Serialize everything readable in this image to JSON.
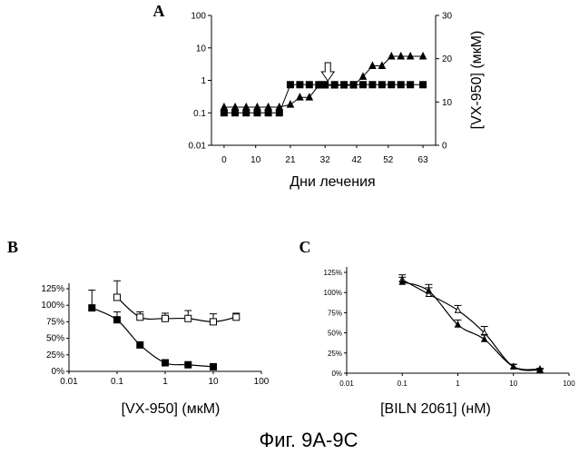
{
  "caption": "Фиг. 9А-9С",
  "chart_data": [
    {
      "id": "A",
      "panel_letter": "A",
      "type": "line",
      "xlabel": "Дни лечения",
      "ylabel_right": "[VX-950] (мкМ)",
      "x_ticks": [
        "0",
        "10",
        "21",
        "32",
        "42",
        "52",
        "63"
      ],
      "y_left_ticks": [
        "0.01",
        "0.1",
        "1",
        "10",
        "100"
      ],
      "y_left_scale": "log",
      "y_left_lim": [
        0.01,
        100
      ],
      "y_right_ticks": [
        "0",
        "10",
        "20",
        "30"
      ],
      "y_right_lim": [
        0,
        30
      ],
      "grid": false,
      "annotation": "arrow-down at day 32",
      "series": [
        {
          "marker": "filled-triangle",
          "axis": "left",
          "x": [
            0,
            3.5,
            7,
            10.5,
            14,
            17.5,
            21,
            24,
            27,
            30,
            32,
            35,
            38,
            41,
            44,
            47,
            50,
            53,
            56,
            59,
            63
          ],
          "y": [
            0.15,
            0.15,
            0.15,
            0.15,
            0.15,
            0.15,
            0.18,
            0.3,
            0.3,
            0.7,
            0.7,
            0.7,
            0.7,
            0.7,
            1.3,
            2.8,
            2.8,
            5.5,
            5.5,
            5.5,
            5.5
          ]
        },
        {
          "marker": "filled-square",
          "axis": "right",
          "x": [
            0,
            3.5,
            7,
            10.5,
            14,
            17.5,
            21,
            24,
            27,
            30,
            32,
            35,
            38,
            41,
            44,
            47,
            50,
            53,
            56,
            59,
            63
          ],
          "y": [
            7.5,
            7.5,
            7.5,
            7.5,
            7.5,
            7.5,
            14,
            14,
            14,
            14,
            14,
            14,
            14,
            14,
            14,
            14,
            14,
            14,
            14,
            14,
            14
          ]
        }
      ]
    },
    {
      "id": "B",
      "panel_letter": "B",
      "type": "line",
      "xlabel": "[VX-950] (мкМ)",
      "x_scale": "log",
      "x_ticks": [
        "0.01",
        "0.1",
        "1",
        "10",
        "100"
      ],
      "y_ticks": [
        "0%",
        "25%",
        "50%",
        "75%",
        "100%",
        "125%"
      ],
      "xlim": [
        0.01,
        100
      ],
      "ylim": [
        0,
        125
      ],
      "grid": false,
      "series": [
        {
          "marker": "open-square",
          "x": [
            0.1,
            0.3,
            1,
            3,
            10,
            30
          ],
          "y": [
            112,
            82,
            80,
            80,
            75,
            82
          ],
          "err": [
            25,
            8,
            8,
            12,
            12,
            6
          ]
        },
        {
          "marker": "filled-square",
          "x": [
            0.03,
            0.1,
            0.3,
            1,
            3,
            10
          ],
          "y": [
            96,
            78,
            40,
            13,
            10,
            7
          ],
          "err": [
            27,
            12,
            4,
            0,
            0,
            0
          ]
        }
      ]
    },
    {
      "id": "C",
      "panel_letter": "C",
      "type": "line",
      "xlabel": "[BILN 2061] (нМ)",
      "x_scale": "log",
      "x_ticks": [
        "0.01",
        "0.1",
        "1",
        "10",
        "100"
      ],
      "y_ticks": [
        "0%",
        "25%",
        "50%",
        "75%",
        "100%",
        "125%"
      ],
      "xlim": [
        0.01,
        100
      ],
      "ylim": [
        0,
        125
      ],
      "grid": false,
      "series": [
        {
          "marker": "open-triangle",
          "x": [
            0.1,
            0.3,
            1,
            3,
            10,
            30
          ],
          "y": [
            116,
            98,
            78,
            50,
            8,
            4
          ],
          "err": [
            6,
            8,
            6,
            8,
            3,
            1
          ]
        },
        {
          "marker": "filled-triangle",
          "x": [
            0.1,
            0.3,
            1,
            3,
            10,
            30
          ],
          "y": [
            113,
            102,
            60,
            42,
            8,
            5
          ],
          "err": [
            6,
            8,
            6,
            6,
            3,
            1
          ]
        }
      ]
    }
  ]
}
